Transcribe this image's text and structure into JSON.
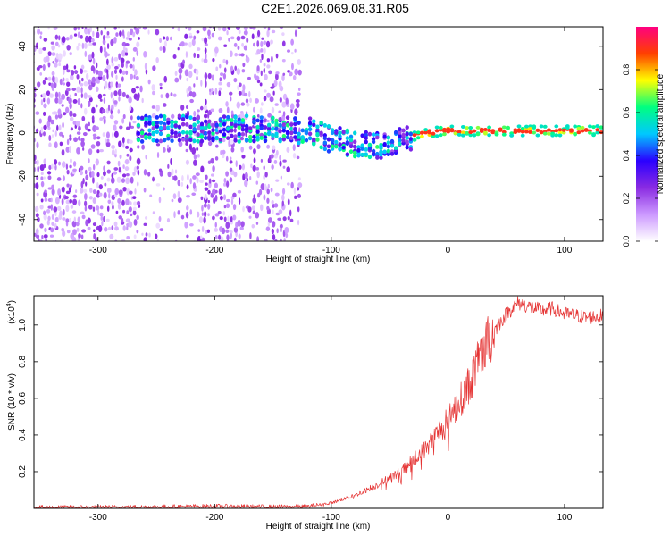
{
  "title": "C2E1.2026.069.08.31.R05",
  "chart_data": [
    {
      "type": "heatmap",
      "panel": "spectrogram",
      "xlabel": "Height of straight line (km)",
      "ylabel": "Frequency (Hz)",
      "xlim": [
        -355,
        133
      ],
      "ylim": [
        -50,
        49
      ],
      "xticks": [
        -300,
        -200,
        -100,
        0,
        100
      ],
      "yticks": [
        -40,
        -20,
        0,
        20,
        40
      ],
      "colorbar": {
        "label": "Normalized spectral amplitude",
        "range": [
          0.0,
          1.0
        ],
        "ticks": [
          0.0,
          0.2,
          0.4,
          0.6,
          0.8
        ],
        "colors": [
          "#ffffff",
          "#cc99ff",
          "#8a2be2",
          "#2a00ff",
          "#00c8ff",
          "#00ff80",
          "#ffff00",
          "#ff4000",
          "#ff0080"
        ]
      },
      "ridge": {
        "description_points": [
          {
            "x": -265,
            "y": 2
          },
          {
            "x": -200,
            "y": 2
          },
          {
            "x": -140,
            "y": 2
          },
          {
            "x": -120,
            "y": 1
          },
          {
            "x": -100,
            "y": -3
          },
          {
            "x": -80,
            "y": -5
          },
          {
            "x": -60,
            "y": -6
          },
          {
            "x": -40,
            "y": -4
          },
          {
            "x": -20,
            "y": 0
          },
          {
            "x": 0,
            "y": 1
          },
          {
            "x": 30,
            "y": 1
          },
          {
            "x": 60,
            "y": 1
          },
          {
            "x": 133,
            "y": 1
          }
        ]
      }
    },
    {
      "type": "line",
      "panel": "snr",
      "xlabel": "Height of straight line (km)",
      "ylabel": "SNR (10 * v/v)",
      "scale_note": "(x10",
      "scale_exp": "4",
      "color": "#e53333",
      "xlim": [
        -355,
        133
      ],
      "ylim": [
        0,
        1.16
      ],
      "xticks": [
        -300,
        -200,
        -100,
        0,
        100
      ],
      "yticks": [
        0.2,
        0.4,
        0.6,
        0.8,
        1.0
      ],
      "ytick_labels": [
        "0.2",
        "0.4",
        "0.6",
        "0.8",
        "1.0"
      ],
      "series": [
        {
          "name": "SNR",
          "x": [
            -355,
            -300,
            -250,
            -200,
            -150,
            -120,
            -100,
            -80,
            -60,
            -40,
            -30,
            -20,
            -10,
            0,
            10,
            20,
            30,
            40,
            50,
            60,
            70,
            80,
            90,
            100,
            110,
            120,
            133
          ],
          "y": [
            0.005,
            0.006,
            0.008,
            0.012,
            0.008,
            0.01,
            0.03,
            0.07,
            0.13,
            0.2,
            0.26,
            0.32,
            0.4,
            0.48,
            0.58,
            0.7,
            0.86,
            0.97,
            1.06,
            1.12,
            1.1,
            1.08,
            1.09,
            1.06,
            1.05,
            1.04,
            1.05
          ]
        }
      ]
    }
  ]
}
